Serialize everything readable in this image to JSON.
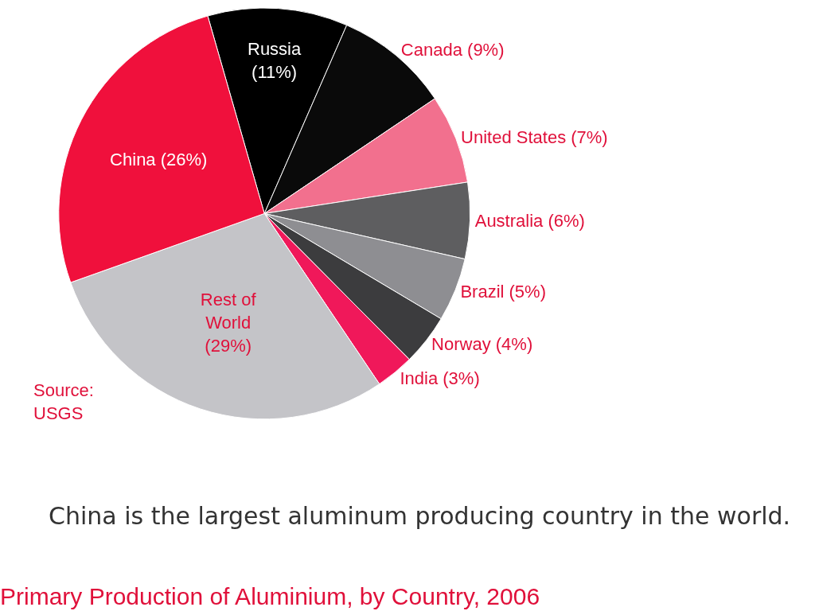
{
  "chart_data": {
    "type": "pie",
    "title": "Primary Production of Aluminium, by Country, 2006",
    "categories": [
      "Russia\n(11%)",
      "Canada (9%)",
      "United States (7%)",
      "Australia (6%)",
      "Brazil (5%)",
      "Norway (4%)",
      "India (3%)",
      "Rest of\nWorld\n(29%)",
      "China (26%)"
    ],
    "values": [
      11,
      9,
      7,
      6,
      5,
      4,
      3,
      29,
      26
    ],
    "colors": [
      "#000000",
      "#0a0a0a",
      "#f2708e",
      "#5e5e60",
      "#8e8e92",
      "#3c3c3e",
      "#f0185a",
      "#c4c4c8",
      "#f0103c"
    ],
    "annotations": [
      "Source:\nUSGS",
      "China is the largest\naluminum producing\ncountry in the world."
    ],
    "legend": false
  }
}
